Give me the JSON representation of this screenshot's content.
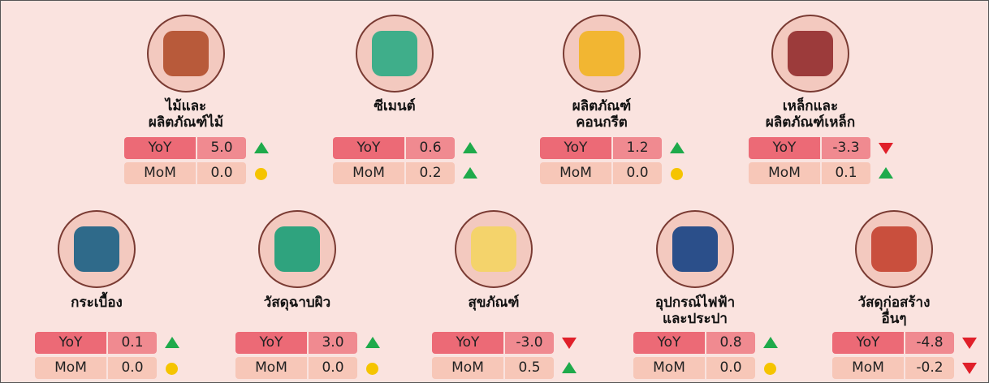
{
  "labels": {
    "yoy": "YoY",
    "mom": "MoM"
  },
  "items": [
    {
      "name": [
        "ไม้และ",
        "ผลิตภัณฑ์ไม้"
      ],
      "yoy": "5.0",
      "mom": "0.0"
    },
    {
      "name": [
        "ซีเมนต์"
      ],
      "yoy": "0.6",
      "mom": "0.2"
    },
    {
      "name": [
        "ผลิตภัณฑ์",
        "คอนกรีต"
      ],
      "yoy": "1.2",
      "mom": "0.0"
    },
    {
      "name": [
        "เหล็กและ",
        "ผลิตภัณฑ์เหล็ก"
      ],
      "yoy": "-3.3",
      "mom": "0.1"
    },
    {
      "name": [
        "กระเบื้อง"
      ],
      "yoy": "0.1",
      "mom": "0.0"
    },
    {
      "name": [
        "วัสดุฉาบผิว"
      ],
      "yoy": "3.0",
      "mom": "0.0"
    },
    {
      "name": [
        "สุขภัณฑ์"
      ],
      "yoy": "-3.0",
      "mom": "0.5"
    },
    {
      "name": [
        "อุปกรณ์ไฟฟ้า",
        "และประปา"
      ],
      "yoy": "0.8",
      "mom": "0.0"
    },
    {
      "name": [
        "วัสดุก่อสร้าง",
        "อื่นๆ"
      ],
      "yoy": "-4.8",
      "mom": "-0.2"
    }
  ]
}
